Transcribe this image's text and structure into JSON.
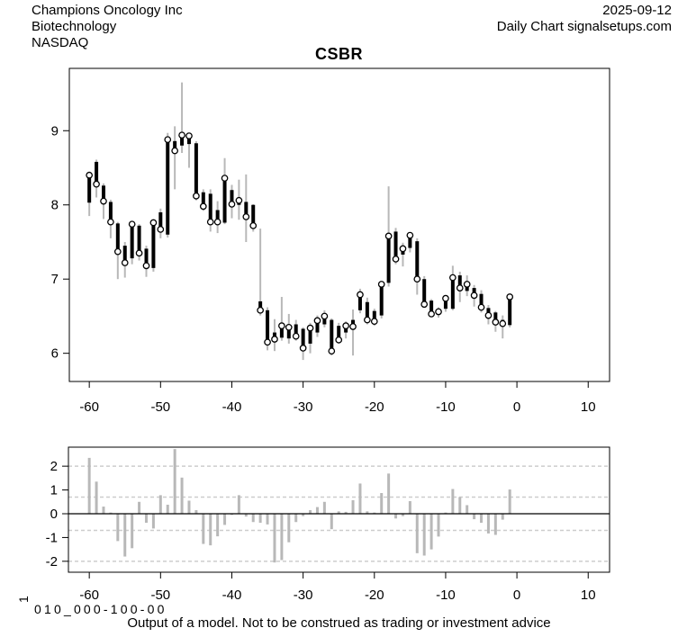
{
  "header": {
    "company": "Champions Oncology Inc",
    "sector": "Biotechnology",
    "exchange": "NASDAQ",
    "date": "2025-09-12",
    "chart_info": "Daily Chart signalsetups.com"
  },
  "title": "CSBR",
  "footer": {
    "panel_axis_label": "1",
    "model_id": "010_000-100-00",
    "disclaimer": "Output of a model. Not to be construed as trading or investment advice"
  },
  "colors": {
    "background": "#ffffff",
    "text": "#000000",
    "body_black": "#000000",
    "wick_gray": "#b8b8b8",
    "panel_bar_gray": "#b8b8b8",
    "dash_gray": "#cdcdcd",
    "box_stroke": "#000000"
  },
  "chart_data": [
    {
      "type": "ohlc",
      "title": "CSBR",
      "xlabel": "",
      "ylabel": "",
      "marker": "open-circle-at-close",
      "yticks": [
        6,
        7,
        8,
        9
      ],
      "xticks": [
        -60,
        -50,
        -40,
        -30,
        -20,
        -10,
        0,
        10
      ],
      "xlim": [
        -62.8,
        13.0
      ],
      "ylim": [
        5.62,
        9.84
      ],
      "x": [
        -60,
        -59,
        -58,
        -57,
        -56,
        -55,
        -54,
        -53,
        -52,
        -51,
        -50,
        -49,
        -48,
        -47,
        -46,
        -45,
        -44,
        -43,
        -42,
        -41,
        -40,
        -39,
        -38,
        -37,
        -36,
        -35,
        -34,
        -33,
        -32,
        -31,
        -30,
        -29,
        -28,
        -27,
        -26,
        -25,
        -24,
        -23,
        -22,
        -21,
        -20,
        -19,
        -18,
        -17,
        -16,
        -15,
        -14,
        -13,
        -12,
        -11,
        -10,
        -9,
        -8,
        -7,
        -6,
        -5,
        -4,
        -3,
        -2,
        -1
      ],
      "open": [
        8.03,
        8.58,
        8.26,
        8.04,
        7.75,
        7.45,
        7.28,
        7.72,
        7.41,
        7.15,
        7.9,
        7.6,
        8.86,
        8.8,
        8.82,
        8.83,
        8.17,
        8.15,
        7.93,
        7.76,
        8.2,
        8.0,
        8.04,
        8.0,
        6.7,
        6.58,
        6.28,
        6.21,
        6.2,
        6.39,
        6.33,
        6.13,
        6.28,
        6.39,
        6.45,
        6.37,
        6.28,
        6.45,
        6.58,
        6.69,
        6.57,
        6.51,
        6.95,
        7.64,
        7.33,
        7.42,
        7.51,
        7.0,
        6.71,
        6.52,
        6.6,
        6.6,
        7.05,
        6.84,
        6.88,
        6.8,
        6.61,
        6.55,
        6.45,
        6.38
      ],
      "high": [
        8.45,
        8.61,
        8.29,
        8.07,
        7.77,
        7.5,
        7.76,
        7.74,
        7.45,
        7.8,
        7.95,
        8.97,
        9.06,
        9.65,
        8.96,
        8.86,
        8.21,
        8.21,
        8.05,
        8.63,
        8.27,
        8.34,
        8.41,
        8.01,
        7.68,
        6.62,
        6.46,
        6.76,
        6.53,
        6.45,
        6.35,
        6.41,
        6.51,
        6.58,
        6.47,
        6.41,
        6.43,
        6.59,
        6.87,
        6.75,
        6.6,
        6.97,
        8.25,
        7.69,
        7.49,
        7.62,
        7.55,
        7.04,
        6.73,
        6.62,
        6.78,
        7.18,
        7.1,
        7.05,
        6.92,
        6.85,
        6.65,
        6.57,
        6.51,
        6.78
      ],
      "low": [
        7.85,
        8.1,
        7.81,
        7.55,
        7.0,
        7.02,
        7.2,
        7.25,
        7.03,
        7.1,
        7.55,
        7.56,
        8.21,
        8.7,
        8.5,
        8.06,
        7.92,
        7.64,
        7.62,
        7.74,
        7.82,
        7.8,
        7.5,
        7.64,
        6.51,
        6.04,
        6.03,
        6.17,
        6.13,
        6.17,
        5.91,
        6.0,
        6.22,
        6.35,
        5.97,
        6.13,
        6.2,
        5.97,
        6.54,
        6.39,
        6.37,
        6.47,
        6.9,
        7.2,
        7.17,
        7.36,
        6.79,
        6.63,
        6.49,
        6.48,
        6.56,
        6.58,
        6.69,
        6.77,
        6.63,
        6.55,
        6.39,
        6.29,
        6.2,
        6.35
      ],
      "close": [
        8.4,
        8.28,
        8.05,
        7.77,
        7.37,
        7.22,
        7.74,
        7.35,
        7.18,
        7.76,
        7.67,
        8.88,
        8.73,
        8.94,
        8.93,
        8.12,
        7.98,
        7.77,
        7.77,
        8.36,
        8.01,
        8.06,
        7.84,
        7.72,
        6.58,
        6.15,
        6.19,
        6.37,
        6.35,
        6.23,
        6.07,
        6.34,
        6.44,
        6.5,
        6.03,
        6.18,
        6.37,
        6.36,
        6.79,
        6.45,
        6.43,
        6.93,
        7.58,
        7.27,
        7.41,
        7.59,
        7.0,
        6.66,
        6.53,
        6.56,
        6.74,
        7.02,
        6.88,
        6.93,
        6.78,
        6.62,
        6.51,
        6.42,
        6.4,
        6.76
      ]
    },
    {
      "type": "bar",
      "title": "Output of a model",
      "yticks": [
        -2,
        -1,
        0,
        1,
        2
      ],
      "xticks": [
        -60,
        -50,
        -40,
        -30,
        -20,
        -10,
        0,
        10
      ],
      "hlines_dashed": [
        2,
        0.7,
        -0.7,
        -2
      ],
      "hline_solid": 0,
      "xlim": [
        -62.8,
        13.0
      ],
      "ylim": [
        -2.46,
        2.8
      ],
      "x": [
        -60,
        -59,
        -58,
        -57,
        -56,
        -55,
        -54,
        -53,
        -52,
        -51,
        -50,
        -49,
        -48,
        -47,
        -46,
        -45,
        -44,
        -43,
        -42,
        -41,
        -40,
        -39,
        -38,
        -37,
        -36,
        -35,
        -34,
        -33,
        -32,
        -31,
        -30,
        -29,
        -28,
        -27,
        -26,
        -25,
        -24,
        -23,
        -22,
        -21,
        -20,
        -19,
        -18,
        -17,
        -16,
        -15,
        -14,
        -13,
        -12,
        -11,
        -10,
        -9,
        -8,
        -7,
        -6,
        -5,
        -4,
        -3,
        -2,
        -1
      ],
      "values": [
        2.35,
        1.35,
        0.3,
        0.05,
        -1.15,
        -1.8,
        -1.45,
        0.5,
        -0.38,
        -0.62,
        0.78,
        0.38,
        2.72,
        1.52,
        0.55,
        0.15,
        -1.27,
        -1.33,
        -0.95,
        -0.47,
        -0.05,
        0.78,
        -0.12,
        -0.35,
        -0.38,
        -0.45,
        -2.05,
        -1.95,
        -1.2,
        -0.35,
        -0.1,
        0.15,
        0.28,
        0.5,
        -0.65,
        0.1,
        0.08,
        0.57,
        1.27,
        0.1,
        0.05,
        0.87,
        1.69,
        -0.2,
        -0.1,
        0.53,
        -1.66,
        -1.76,
        -1.5,
        -0.96,
        0.05,
        1.04,
        0.7,
        0.36,
        -0.23,
        -0.38,
        -0.83,
        -0.89,
        -0.25,
        1.02
      ]
    }
  ]
}
